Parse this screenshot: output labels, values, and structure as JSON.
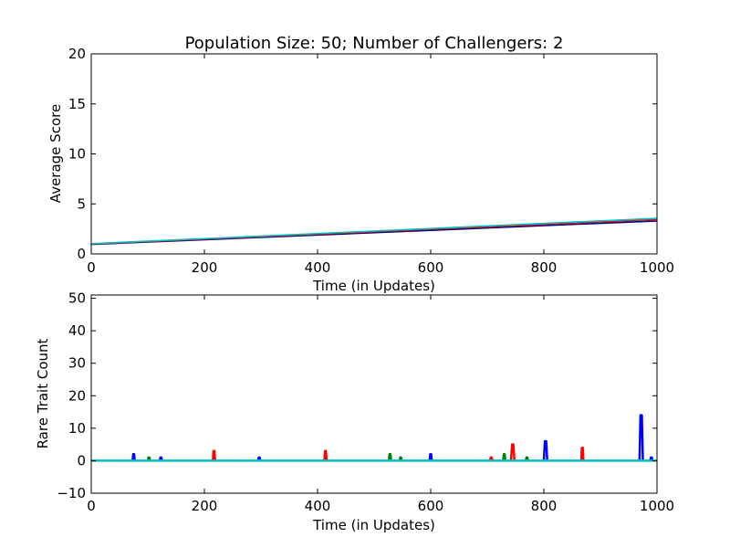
{
  "figure": {
    "title": "Population Size: 50; Number of Challengers: 2"
  },
  "colors": {
    "blue": "#0000ff",
    "green": "#008000",
    "red": "#ff0000",
    "cyan": "#00bfbf",
    "navy": "#000080",
    "teal": "#20b2aa"
  },
  "chart_data": [
    {
      "type": "line",
      "title": "Population Size: 50; Number of Challengers: 2",
      "xlabel": "Time (in Updates)",
      "ylabel": "Average Score",
      "xlim": [
        0,
        1000
      ],
      "ylim": [
        0,
        20
      ],
      "xticks": [
        "0",
        "200",
        "400",
        "600",
        "800",
        "1000"
      ],
      "yticks": [
        "0",
        "5",
        "10",
        "15",
        "20"
      ],
      "grid": false,
      "series": [
        {
          "name": "blue",
          "color": "#000080",
          "x": [
            0,
            1000
          ],
          "y": [
            0.95,
            3.3
          ]
        },
        {
          "name": "green",
          "color": "#008000",
          "x": [
            0,
            1000
          ],
          "y": [
            1.0,
            3.5
          ]
        },
        {
          "name": "red",
          "color": "#ff0000",
          "x": [
            0,
            1000
          ],
          "y": [
            1.0,
            3.45
          ]
        },
        {
          "name": "cyan",
          "color": "#00bfbf",
          "x": [
            0,
            1000
          ],
          "y": [
            1.02,
            3.55
          ]
        }
      ]
    },
    {
      "type": "line",
      "title": "",
      "xlabel": "Time (in Updates)",
      "ylabel": "Rare Trait Count",
      "xlim": [
        0,
        1000
      ],
      "ylim": [
        -10,
        51
      ],
      "xticks": [
        "0",
        "200",
        "400",
        "600",
        "800",
        "1000"
      ],
      "yticks": [
        "−10",
        "0",
        "10",
        "20",
        "30",
        "40",
        "50"
      ],
      "ytick_values": [
        -10,
        0,
        10,
        20,
        30,
        40,
        50
      ],
      "grid": false,
      "baseline": {
        "name": "cyan",
        "color": "#00bfbf",
        "x": [
          0,
          1000
        ],
        "y": [
          0,
          0
        ]
      },
      "series": [
        {
          "name": "blue",
          "color": "#0000ff",
          "peaks": [
            {
              "x": 75,
              "y": 2
            },
            {
              "x": 123,
              "y": 1
            },
            {
              "x": 297,
              "y": 1
            },
            {
              "x": 600,
              "y": 2
            },
            {
              "x": 803,
              "y": 6
            },
            {
              "x": 972,
              "y": 14
            },
            {
              "x": 990,
              "y": 1
            }
          ]
        },
        {
          "name": "green",
          "color": "#008000",
          "peaks": [
            {
              "x": 102,
              "y": 1
            },
            {
              "x": 528,
              "y": 2
            },
            {
              "x": 547,
              "y": 1
            },
            {
              "x": 730,
              "y": 2
            },
            {
              "x": 770,
              "y": 1
            }
          ]
        },
        {
          "name": "red",
          "color": "#ff0000",
          "peaks": [
            {
              "x": 217,
              "y": 3
            },
            {
              "x": 414,
              "y": 3
            },
            {
              "x": 707,
              "y": 1
            },
            {
              "x": 745,
              "y": 5
            },
            {
              "x": 868,
              "y": 4
            }
          ]
        }
      ]
    }
  ]
}
